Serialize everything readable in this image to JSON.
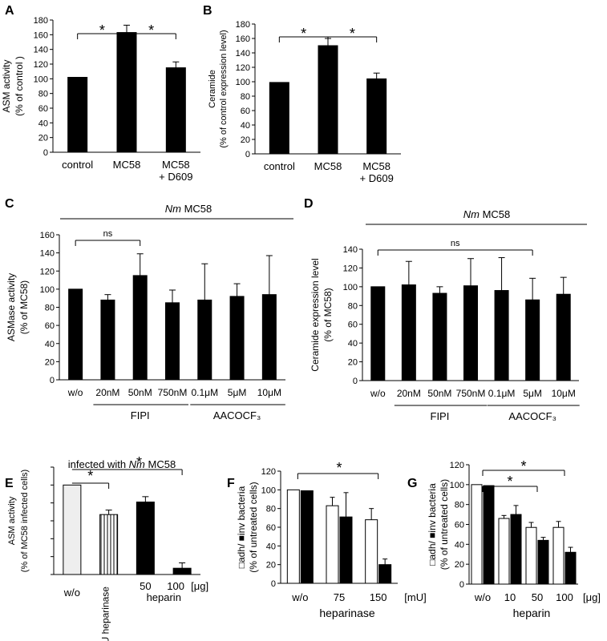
{
  "chart_data": [
    {
      "panel": "A",
      "type": "bar",
      "ylabel_lines": [
        "ASM activity",
        "(% of  control )"
      ],
      "ylim": [
        0,
        180
      ],
      "yticks": [
        "0",
        "20",
        "40",
        "60",
        "80",
        "100",
        "120",
        "140",
        "160",
        "180"
      ],
      "categories": [
        [
          "control"
        ],
        [
          "MC58"
        ],
        [
          "MC58",
          "+ D609"
        ]
      ],
      "values": [
        102,
        163,
        115
      ],
      "errors": [
        0,
        10,
        8
      ],
      "sig_marks": [
        "*",
        "*"
      ]
    },
    {
      "panel": "B",
      "type": "bar",
      "ylabel_lines": [
        "Ceramide",
        "(% of  control expression level)"
      ],
      "ylim": [
        0,
        180
      ],
      "yticks": [
        "0",
        "20",
        "40",
        "60",
        "80",
        "100",
        "120",
        "140",
        "160",
        "180"
      ],
      "categories": [
        [
          "control"
        ],
        [
          "MC58"
        ],
        [
          "MC58",
          "+ D609"
        ]
      ],
      "values": [
        99,
        150,
        104
      ],
      "errors": [
        0,
        10,
        8
      ],
      "sig_marks": [
        "*",
        "*"
      ]
    },
    {
      "panel": "C",
      "type": "bar",
      "header_italic": "Nm",
      "header_text": " MC58",
      "ylabel_lines": [
        "ASMase activity",
        "(% of  MC58)"
      ],
      "ylim": [
        0,
        160
      ],
      "yticks": [
        "0",
        "20",
        "40",
        "60",
        "80",
        "100",
        "120",
        "140",
        "160"
      ],
      "categories": [
        "w/o",
        "20nM",
        "50nM",
        "750nM",
        "0.1μM",
        "5μM",
        "10μM"
      ],
      "values": [
        100,
        88,
        115,
        85,
        88,
        92,
        94
      ],
      "errors": [
        0,
        6,
        24,
        14,
        40,
        14,
        43
      ],
      "group_labels": [
        "FIPI",
        "AACOCF₃"
      ],
      "sig_marks": [
        "ns"
      ]
    },
    {
      "panel": "D",
      "type": "bar",
      "header_italic": "Nm",
      "header_text": " MC58",
      "ylabel_lines": [
        "Ceramide expression level",
        "(% of  MC58)"
      ],
      "ylim": [
        0,
        140
      ],
      "yticks": [
        "0",
        "20",
        "40",
        "60",
        "80",
        "100",
        "120",
        "140"
      ],
      "categories": [
        "w/o",
        "20nM",
        "50nM",
        "750nM",
        "0.1μM",
        "5μM",
        "10μM"
      ],
      "values": [
        100,
        102,
        93,
        101,
        96,
        86,
        92
      ],
      "errors": [
        0,
        25,
        7,
        29,
        35,
        23,
        18
      ],
      "group_labels": [
        "FIPI",
        "AACOCF₃"
      ],
      "sig_marks": [
        "ns"
      ]
    },
    {
      "panel": "E",
      "type": "bar",
      "title_pre": "infected with ",
      "title_italic": "Nm",
      "title_post": " MC58",
      "ylabel_lines": [
        "ASM activity",
        "(% of  MC58 infected cells)"
      ],
      "ylim": [
        0,
        120
      ],
      "categories": [
        "w/o",
        "+ 75mU heparinase",
        "50",
        "100"
      ],
      "values": [
        100,
        67,
        81,
        7
      ],
      "errors": [
        0,
        5,
        6,
        6
      ],
      "x_extra": [
        "heparin",
        "[μg]"
      ],
      "sig_marks": [
        "*",
        "*"
      ]
    },
    {
      "panel": "F",
      "type": "bar",
      "ylabel_lines": [
        "□adh/ ■inv bacteria",
        "(% of untreated cells)"
      ],
      "ylim": [
        0,
        120
      ],
      "yticks": [
        "0",
        "20",
        "40",
        "60",
        "80",
        "100",
        "120"
      ],
      "categories": [
        "w/o",
        "75",
        "150"
      ],
      "unit": "[mU]",
      "xlabel": "heparinase",
      "series": [
        {
          "values": [
            100,
            83,
            68
          ],
          "errors": [
            0,
            9,
            12
          ]
        },
        {
          "values": [
            99,
            71,
            20
          ],
          "errors": [
            0,
            26,
            6
          ]
        }
      ],
      "sig_marks": [
        "*"
      ]
    },
    {
      "panel": "G",
      "type": "bar",
      "ylabel_lines": [
        "□adh/ ■inv bacteria",
        "(% of untreated cells)"
      ],
      "ylim": [
        0,
        120
      ],
      "yticks": [
        "0",
        "20",
        "40",
        "60",
        "80",
        "100",
        "120"
      ],
      "categories": [
        "w/o",
        "10",
        "50",
        "100"
      ],
      "unit": "[μg]",
      "xlabel": "heparin",
      "series": [
        {
          "values": [
            100,
            66,
            57,
            57
          ],
          "errors": [
            0,
            3,
            5,
            6
          ]
        },
        {
          "values": [
            99,
            70,
            44,
            32
          ],
          "errors": [
            0,
            9,
            3,
            5
          ]
        }
      ],
      "sig_marks": [
        "*",
        "*"
      ]
    }
  ]
}
